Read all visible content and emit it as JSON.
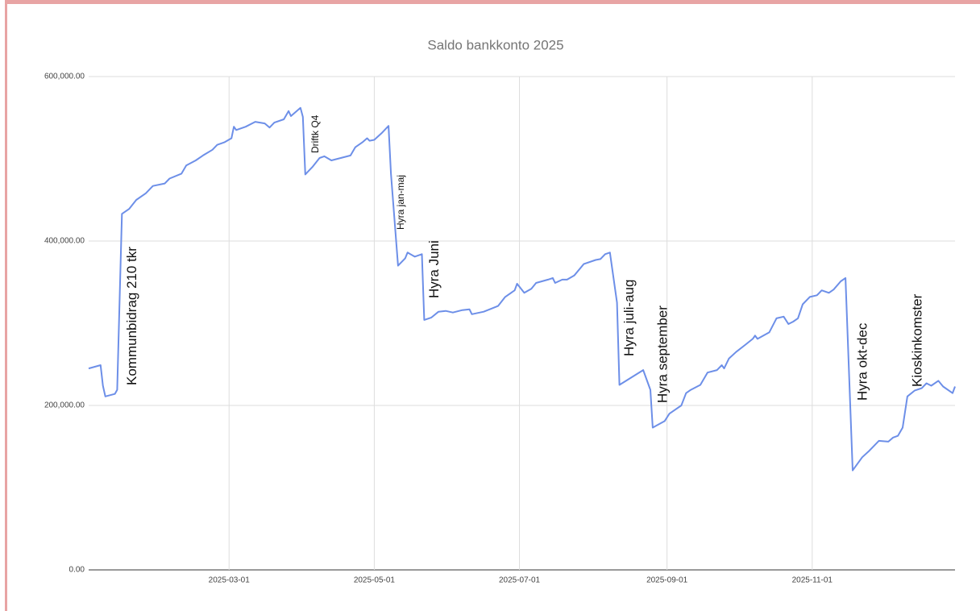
{
  "chart_data": {
    "type": "line",
    "title": "Saldo bankkonto 2025",
    "color": "#6d8fe8",
    "grid": true,
    "xlim": [
      "2025-01-01",
      "2025-12-31"
    ],
    "xticks": [
      "2025-03-01",
      "2025-05-01",
      "2025-07-01",
      "2025-09-01",
      "2025-11-01"
    ],
    "ylim": [
      0,
      600000
    ],
    "yticks": [
      {
        "value": 0,
        "label": "0.00"
      },
      {
        "value": 200000,
        "label": "200,000.00"
      },
      {
        "value": 400000,
        "label": "400,000.00"
      },
      {
        "value": 600000,
        "label": "600,000.00"
      }
    ],
    "x": [
      "2025-01-01",
      "2025-01-06",
      "2025-01-07",
      "2025-01-08",
      "2025-01-12",
      "2025-01-13",
      "2025-01-15",
      "2025-01-18",
      "2025-01-21",
      "2025-01-25",
      "2025-01-28",
      "2025-02-02",
      "2025-02-04",
      "2025-02-09",
      "2025-02-11",
      "2025-02-15",
      "2025-02-18",
      "2025-02-22",
      "2025-02-24",
      "2025-02-27",
      "2025-03-02",
      "2025-03-03",
      "2025-03-04",
      "2025-03-08",
      "2025-03-12",
      "2025-03-16",
      "2025-03-18",
      "2025-03-20",
      "2025-03-24",
      "2025-03-26",
      "2025-03-27",
      "2025-03-31",
      "2025-04-01",
      "2025-04-02",
      "2025-04-05",
      "2025-04-08",
      "2025-04-10",
      "2025-04-13",
      "2025-04-21",
      "2025-04-23",
      "2025-04-26",
      "2025-04-28",
      "2025-04-29",
      "2025-05-01",
      "2025-05-04",
      "2025-05-07",
      "2025-05-08",
      "2025-05-11",
      "2025-05-14",
      "2025-05-15",
      "2025-05-18",
      "2025-05-21",
      "2025-05-22",
      "2025-05-25",
      "2025-05-28",
      "2025-05-31",
      "2025-06-03",
      "2025-06-07",
      "2025-06-10",
      "2025-06-11",
      "2025-06-16",
      "2025-06-22",
      "2025-06-25",
      "2025-06-29",
      "2025-06-30",
      "2025-07-03",
      "2025-07-06",
      "2025-07-08",
      "2025-07-13",
      "2025-07-15",
      "2025-07-16",
      "2025-07-19",
      "2025-07-21",
      "2025-07-24",
      "2025-07-28",
      "2025-08-02",
      "2025-08-04",
      "2025-08-06",
      "2025-08-08",
      "2025-08-11",
      "2025-08-12",
      "2025-08-22",
      "2025-08-25",
      "2025-08-26",
      "2025-08-31",
      "2025-09-02",
      "2025-09-07",
      "2025-09-09",
      "2025-09-11",
      "2025-09-15",
      "2025-09-18",
      "2025-09-22",
      "2025-09-24",
      "2025-09-25",
      "2025-09-27",
      "2025-09-30",
      "2025-10-04",
      "2025-10-07",
      "2025-10-08",
      "2025-10-09",
      "2025-10-14",
      "2025-10-17",
      "2025-10-20",
      "2025-10-22",
      "2025-10-24",
      "2025-10-26",
      "2025-10-28",
      "2025-10-31",
      "2025-11-03",
      "2025-11-05",
      "2025-11-08",
      "2025-11-10",
      "2025-11-13",
      "2025-11-15",
      "2025-11-18",
      "2025-11-22",
      "2025-11-25",
      "2025-11-29",
      "2025-12-03",
      "2025-12-05",
      "2025-12-07",
      "2025-12-09",
      "2025-12-11",
      "2025-12-14",
      "2025-12-17",
      "2025-12-19",
      "2025-12-21",
      "2025-12-24",
      "2025-12-26",
      "2025-12-30",
      "2025-12-31"
    ],
    "values": [
      245000,
      249000,
      224000,
      211000,
      214000,
      219000,
      433000,
      439000,
      450000,
      458000,
      467000,
      470000,
      476000,
      482000,
      492000,
      498000,
      504000,
      511000,
      517000,
      520000,
      525000,
      539000,
      535000,
      539000,
      545000,
      543000,
      538000,
      544000,
      548000,
      558000,
      552000,
      562000,
      551000,
      481000,
      490000,
      501000,
      503000,
      498000,
      504000,
      514000,
      520000,
      525000,
      522000,
      523000,
      531000,
      540000,
      482000,
      370000,
      379000,
      386000,
      381000,
      384000,
      304000,
      307000,
      314000,
      315000,
      313000,
      316000,
      317000,
      311000,
      314000,
      321000,
      332000,
      340000,
      348000,
      337000,
      342000,
      349000,
      353000,
      355000,
      349000,
      353000,
      353000,
      358000,
      372000,
      377000,
      378000,
      384000,
      386000,
      325000,
      225000,
      243000,
      219000,
      173000,
      181000,
      190000,
      200000,
      215000,
      219000,
      225000,
      240000,
      243000,
      249000,
      245000,
      257000,
      265000,
      274000,
      281000,
      285000,
      281000,
      289000,
      306000,
      308000,
      299000,
      302000,
      306000,
      323000,
      332000,
      334000,
      340000,
      337000,
      341000,
      351000,
      355000,
      121000,
      137000,
      145000,
      157000,
      156000,
      161000,
      163000,
      173000,
      211000,
      218000,
      221000,
      227000,
      224000,
      230000,
      223000,
      215000,
      223000
    ],
    "annotations": [
      {
        "x": "2025-01-15",
        "text": "Kommunbidrag 210 tkr"
      },
      {
        "x": "2025-04-02",
        "text": "Driftk Q4"
      },
      {
        "x": "2025-05-08",
        "text": "Hyra jan-maj"
      },
      {
        "x": "2025-05-22",
        "text": "Hyra Juni"
      },
      {
        "x": "2025-08-12",
        "text": "Hyra juli-aug"
      },
      {
        "x": "2025-08-26",
        "text": "Hyra september"
      },
      {
        "x": "2025-11-18",
        "text": "Hyra okt-dec"
      },
      {
        "x": "2025-12-11",
        "text": "Kioskinkomster"
      }
    ]
  }
}
